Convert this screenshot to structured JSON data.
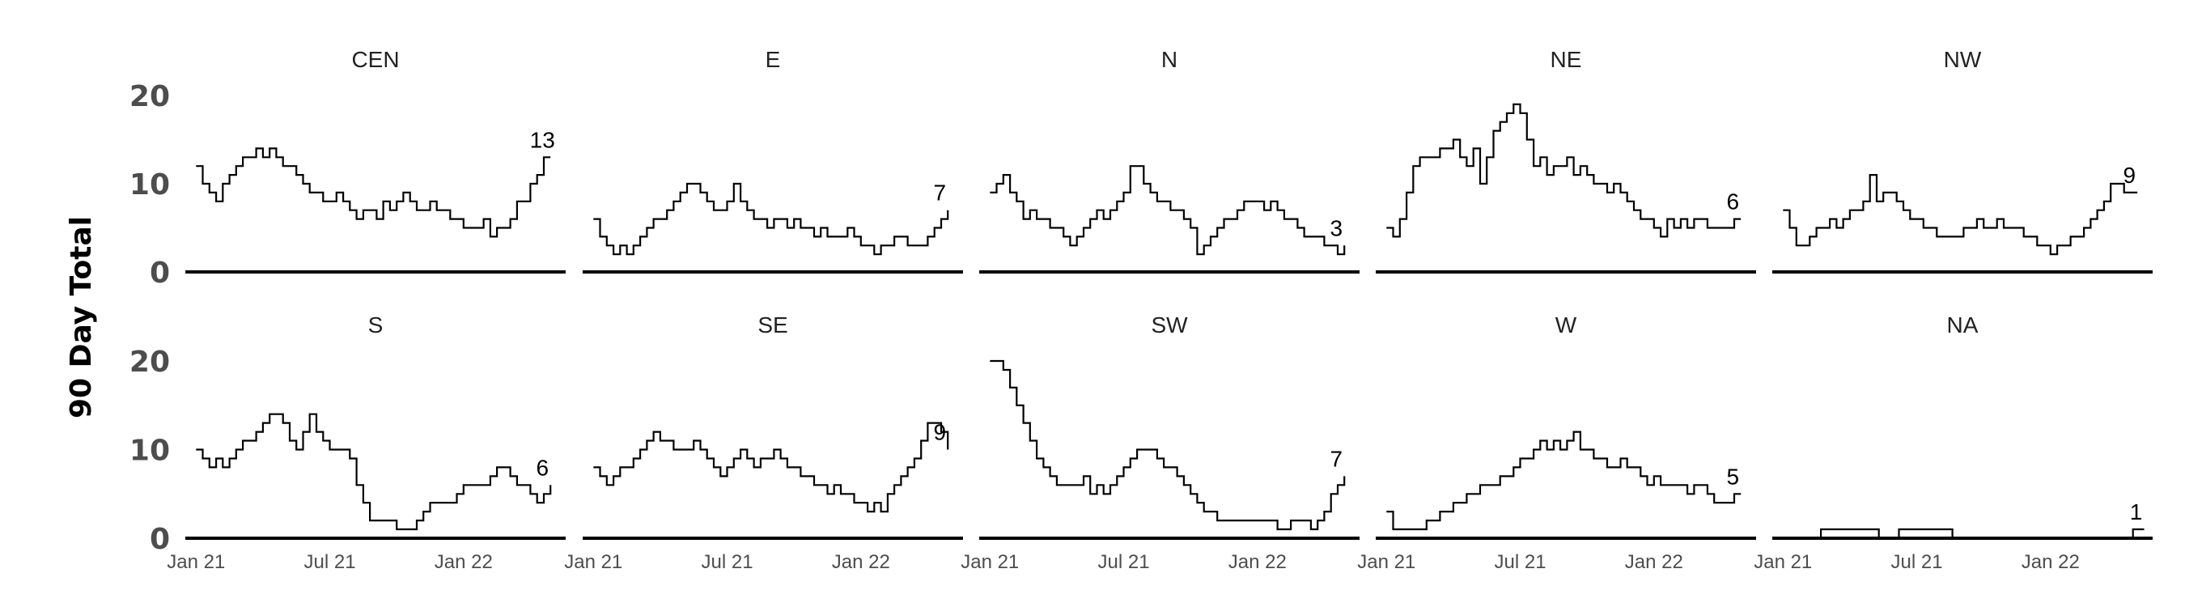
{
  "chart_data": {
    "type": "line",
    "ylabel": "90 Day Total",
    "ylim": [
      0,
      20
    ],
    "y_ticks": [
      "0",
      "10",
      "20"
    ],
    "x_tick_labels": [
      "Jan 21",
      "Jul 21",
      "Jan 22"
    ],
    "x_tick_months": [
      0,
      6,
      12
    ],
    "x_range_months": [
      -0.3,
      16.4
    ],
    "line_color": "#000000",
    "grid": false,
    "panels": [
      {
        "name": "CEN",
        "end_label": "13",
        "x": [
          0,
          0.3,
          0.6,
          0.9,
          1.2,
          1.5,
          1.8,
          2.1,
          2.4,
          2.7,
          3,
          3.3,
          3.6,
          3.9,
          4.2,
          4.5,
          4.8,
          5.1,
          5.4,
          5.7,
          6,
          6.3,
          6.6,
          6.9,
          7.2,
          7.5,
          7.8,
          8.1,
          8.4,
          8.7,
          9,
          9.3,
          9.6,
          9.9,
          10.2,
          10.5,
          10.8,
          11.1,
          11.4,
          11.7,
          12,
          12.3,
          12.6,
          12.9,
          13.2,
          13.5,
          13.8,
          14.1,
          14.4,
          14.7,
          15,
          15.3,
          15.6,
          15.9
        ],
        "y": [
          12,
          10,
          9,
          8,
          10,
          11,
          12,
          13,
          13,
          14,
          13,
          14,
          13,
          12,
          12,
          11,
          10,
          9,
          9,
          8,
          8,
          9,
          8,
          7,
          6,
          7,
          7,
          6,
          8,
          7,
          8,
          9,
          8,
          7,
          7,
          8,
          7,
          7,
          6,
          6,
          5,
          5,
          5,
          6,
          4,
          5,
          5,
          6,
          8,
          8,
          10,
          11,
          13,
          13
        ]
      },
      {
        "name": "E",
        "end_label": "7",
        "x": [
          0,
          0.3,
          0.6,
          0.9,
          1.2,
          1.5,
          1.8,
          2.1,
          2.4,
          2.7,
          3,
          3.3,
          3.6,
          3.9,
          4.2,
          4.5,
          4.8,
          5.1,
          5.4,
          5.7,
          6,
          6.3,
          6.6,
          6.9,
          7.2,
          7.5,
          7.8,
          8.1,
          8.4,
          8.7,
          9,
          9.3,
          9.6,
          9.9,
          10.2,
          10.5,
          10.8,
          11.1,
          11.4,
          11.7,
          12,
          12.3,
          12.6,
          12.9,
          13.2,
          13.5,
          13.8,
          14.1,
          14.4,
          14.7,
          15,
          15.3,
          15.6,
          15.9
        ],
        "y": [
          6,
          4,
          3,
          2,
          3,
          2,
          3,
          4,
          5,
          6,
          6,
          7,
          8,
          9,
          10,
          10,
          9,
          8,
          7,
          7,
          8,
          10,
          8,
          7,
          6,
          6,
          5,
          6,
          6,
          5,
          6,
          5,
          5,
          4,
          5,
          4,
          4,
          4,
          5,
          4,
          3,
          3,
          2,
          3,
          3,
          4,
          4,
          3,
          3,
          3,
          4,
          5,
          6,
          7
        ]
      },
      {
        "name": "N",
        "end_label": "3",
        "x": [
          0,
          0.3,
          0.6,
          0.9,
          1.2,
          1.5,
          1.8,
          2.1,
          2.4,
          2.7,
          3,
          3.3,
          3.6,
          3.9,
          4.2,
          4.5,
          4.8,
          5.1,
          5.4,
          5.7,
          6,
          6.3,
          6.6,
          6.9,
          7.2,
          7.5,
          7.8,
          8.1,
          8.4,
          8.7,
          9,
          9.3,
          9.6,
          9.9,
          10.2,
          10.5,
          10.8,
          11.1,
          11.4,
          11.7,
          12,
          12.3,
          12.6,
          12.9,
          13.2,
          13.5,
          13.8,
          14.1,
          14.4,
          14.7,
          15,
          15.3,
          15.6,
          15.9
        ],
        "y": [
          9,
          10,
          11,
          9,
          8,
          6,
          7,
          6,
          6,
          5,
          5,
          4,
          3,
          4,
          5,
          6,
          7,
          6,
          7,
          8,
          9,
          12,
          12,
          10,
          9,
          8,
          8,
          7,
          7,
          6,
          5,
          2,
          3,
          4,
          5,
          6,
          6,
          7,
          8,
          8,
          8,
          7,
          8,
          7,
          6,
          6,
          5,
          4,
          4,
          4,
          3,
          3,
          2,
          3
        ]
      },
      {
        "name": "NE",
        "end_label": "6",
        "x": [
          0,
          0.3,
          0.6,
          0.9,
          1.2,
          1.5,
          1.8,
          2.1,
          2.4,
          2.7,
          3,
          3.3,
          3.6,
          3.9,
          4.2,
          4.5,
          4.8,
          5.1,
          5.4,
          5.7,
          6,
          6.3,
          6.6,
          6.9,
          7.2,
          7.5,
          7.8,
          8.1,
          8.4,
          8.7,
          9,
          9.3,
          9.6,
          9.9,
          10.2,
          10.5,
          10.8,
          11.1,
          11.4,
          11.7,
          12,
          12.3,
          12.6,
          12.9,
          13.2,
          13.5,
          13.8,
          14.1,
          14.4,
          14.7,
          15,
          15.3,
          15.6,
          15.9
        ],
        "y": [
          5,
          4,
          6,
          9,
          12,
          13,
          13,
          13,
          14,
          14,
          15,
          13,
          12,
          14,
          10,
          13,
          16,
          17,
          18,
          19,
          18,
          15,
          12,
          13,
          11,
          12,
          12,
          13,
          11,
          12,
          11,
          10,
          10,
          9,
          10,
          9,
          8,
          7,
          6,
          6,
          5,
          4,
          6,
          5,
          6,
          5,
          6,
          6,
          5,
          5,
          5,
          5,
          6,
          6
        ]
      },
      {
        "name": "NW",
        "end_label": "9",
        "x": [
          0,
          0.3,
          0.6,
          0.9,
          1.2,
          1.5,
          1.8,
          2.1,
          2.4,
          2.7,
          3,
          3.3,
          3.6,
          3.9,
          4.2,
          4.5,
          4.8,
          5.1,
          5.4,
          5.7,
          6,
          6.3,
          6.6,
          6.9,
          7.2,
          7.5,
          7.8,
          8.1,
          8.4,
          8.7,
          9,
          9.3,
          9.6,
          9.9,
          10.2,
          10.5,
          10.8,
          11.1,
          11.4,
          11.7,
          12,
          12.3,
          12.6,
          12.9,
          13.2,
          13.5,
          13.8,
          14.1,
          14.4,
          14.7,
          15,
          15.3,
          15.6,
          15.9
        ],
        "y": [
          7,
          5,
          3,
          3,
          4,
          5,
          5,
          6,
          5,
          6,
          7,
          7,
          8,
          11,
          8,
          9,
          9,
          8,
          7,
          6,
          6,
          5,
          5,
          4,
          4,
          4,
          4,
          5,
          5,
          6,
          5,
          5,
          6,
          5,
          5,
          5,
          4,
          4,
          3,
          3,
          2,
          3,
          3,
          4,
          4,
          5,
          6,
          7,
          8,
          10,
          10,
          9,
          9,
          9
        ]
      },
      {
        "name": "S",
        "end_label": "6",
        "x": [
          0,
          0.3,
          0.6,
          0.9,
          1.2,
          1.5,
          1.8,
          2.1,
          2.4,
          2.7,
          3,
          3.3,
          3.6,
          3.9,
          4.2,
          4.5,
          4.8,
          5.1,
          5.4,
          5.7,
          6,
          6.3,
          6.6,
          6.9,
          7.2,
          7.5,
          7.8,
          8.1,
          8.4,
          8.7,
          9,
          9.3,
          9.6,
          9.9,
          10.2,
          10.5,
          10.8,
          11.1,
          11.4,
          11.7,
          12,
          12.3,
          12.6,
          12.9,
          13.2,
          13.5,
          13.8,
          14.1,
          14.4,
          14.7,
          15,
          15.3,
          15.6,
          15.9
        ],
        "y": [
          10,
          9,
          8,
          9,
          8,
          9,
          10,
          11,
          11,
          12,
          13,
          14,
          14,
          13,
          11,
          10,
          12,
          14,
          12,
          11,
          10,
          10,
          10,
          9,
          6,
          4,
          2,
          2,
          2,
          2,
          1,
          1,
          1,
          2,
          3,
          4,
          4,
          4,
          4,
          5,
          6,
          6,
          6,
          6,
          7,
          8,
          8,
          7,
          6,
          6,
          5,
          4,
          5,
          6
        ]
      },
      {
        "name": "SE",
        "end_label": "9",
        "x": [
          0,
          0.3,
          0.6,
          0.9,
          1.2,
          1.5,
          1.8,
          2.1,
          2.4,
          2.7,
          3,
          3.3,
          3.6,
          3.9,
          4.2,
          4.5,
          4.8,
          5.1,
          5.4,
          5.7,
          6,
          6.3,
          6.6,
          6.9,
          7.2,
          7.5,
          7.8,
          8.1,
          8.4,
          8.7,
          9,
          9.3,
          9.6,
          9.9,
          10.2,
          10.5,
          10.8,
          11.1,
          11.4,
          11.7,
          12,
          12.3,
          12.6,
          12.9,
          13.2,
          13.5,
          13.8,
          14.1,
          14.4,
          14.7,
          15,
          15.3,
          15.6,
          15.9
        ],
        "y": [
          8,
          7,
          6,
          7,
          8,
          8,
          9,
          10,
          11,
          12,
          11,
          11,
          10,
          10,
          10,
          11,
          10,
          9,
          8,
          7,
          8,
          9,
          10,
          9,
          8,
          9,
          9,
          10,
          9,
          8,
          8,
          7,
          7,
          6,
          6,
          5,
          6,
          5,
          5,
          4,
          4,
          3,
          4,
          3,
          5,
          6,
          7,
          8,
          9,
          11,
          13,
          13,
          12,
          10
        ]
      },
      {
        "name": "SW",
        "end_label": "7",
        "x": [
          0,
          0.3,
          0.6,
          0.9,
          1.2,
          1.5,
          1.8,
          2.1,
          2.4,
          2.7,
          3,
          3.3,
          3.6,
          3.9,
          4.2,
          4.5,
          4.8,
          5.1,
          5.4,
          5.7,
          6,
          6.3,
          6.6,
          6.9,
          7.2,
          7.5,
          7.8,
          8.1,
          8.4,
          8.7,
          9,
          9.3,
          9.6,
          9.9,
          10.2,
          10.5,
          10.8,
          11.1,
          11.4,
          11.7,
          12,
          12.3,
          12.6,
          12.9,
          13.2,
          13.5,
          13.8,
          14.1,
          14.4,
          14.7,
          15,
          15.3,
          15.6,
          15.9
        ],
        "y": [
          20,
          20,
          19,
          17,
          15,
          13,
          11,
          9,
          8,
          7,
          6,
          6,
          6,
          6,
          7,
          5,
          6,
          5,
          6,
          7,
          8,
          9,
          10,
          10,
          10,
          9,
          8,
          8,
          7,
          6,
          5,
          4,
          3,
          3,
          2,
          2,
          2,
          2,
          2,
          2,
          2,
          2,
          2,
          1,
          1,
          2,
          2,
          2,
          1,
          2,
          3,
          5,
          6,
          7
        ]
      },
      {
        "name": "W",
        "end_label": "5",
        "x": [
          0,
          0.3,
          0.6,
          0.9,
          1.2,
          1.5,
          1.8,
          2.1,
          2.4,
          2.7,
          3,
          3.3,
          3.6,
          3.9,
          4.2,
          4.5,
          4.8,
          5.1,
          5.4,
          5.7,
          6,
          6.3,
          6.6,
          6.9,
          7.2,
          7.5,
          7.8,
          8.1,
          8.4,
          8.7,
          9,
          9.3,
          9.6,
          9.9,
          10.2,
          10.5,
          10.8,
          11.1,
          11.4,
          11.7,
          12,
          12.3,
          12.6,
          12.9,
          13.2,
          13.5,
          13.8,
          14.1,
          14.4,
          14.7,
          15,
          15.3,
          15.6,
          15.9
        ],
        "y": [
          3,
          1,
          1,
          1,
          1,
          1,
          2,
          2,
          3,
          3,
          4,
          4,
          5,
          5,
          6,
          6,
          6,
          7,
          7,
          8,
          9,
          9,
          10,
          11,
          10,
          11,
          10,
          11,
          12,
          10,
          10,
          9,
          9,
          8,
          8,
          9,
          8,
          8,
          7,
          6,
          7,
          6,
          6,
          6,
          6,
          5,
          6,
          6,
          5,
          4,
          4,
          4,
          5,
          5
        ]
      },
      {
        "name": "NA",
        "end_label": "1",
        "x": [
          0,
          1.7,
          1.7,
          4.3,
          4.3,
          5.2,
          5.2,
          7.6,
          7.6,
          15.7,
          15.7,
          16.2
        ],
        "y": [
          0,
          0,
          1,
          1,
          0,
          0,
          1,
          1,
          0,
          0,
          1,
          1
        ]
      }
    ]
  }
}
